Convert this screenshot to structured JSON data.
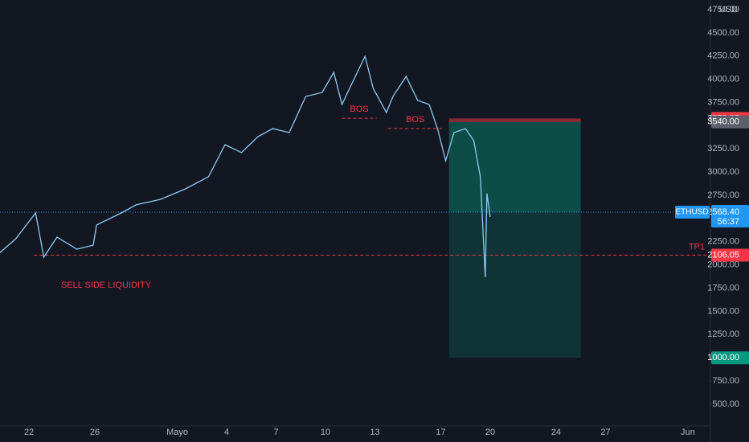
{
  "chart_data": {
    "type": "line",
    "unit": "USD",
    "xlim": [
      -1.76,
      41.37
    ],
    "ylim": [
      266,
      4854
    ],
    "xticks": [
      {
        "value": 0,
        "label": "22"
      },
      {
        "value": 4,
        "label": "26"
      },
      {
        "value": 9,
        "label": "Mayo"
      },
      {
        "value": 12,
        "label": "4"
      },
      {
        "value": 15,
        "label": "7"
      },
      {
        "value": 18,
        "label": "10"
      },
      {
        "value": 21,
        "label": "13"
      },
      {
        "value": 25,
        "label": "17"
      },
      {
        "value": 28,
        "label": "20"
      },
      {
        "value": 32,
        "label": "24"
      },
      {
        "value": 35,
        "label": "27"
      },
      {
        "value": 40,
        "label": "Jun"
      }
    ],
    "yticks": [
      {
        "value": 4750,
        "label": "4750.00"
      },
      {
        "value": 4500,
        "label": "4500.00"
      },
      {
        "value": 4250,
        "label": "4250.00"
      },
      {
        "value": 4000,
        "label": "4000.00"
      },
      {
        "value": 3750,
        "label": "3750.00"
      },
      {
        "value": 3250,
        "label": "3250.00"
      },
      {
        "value": 3000,
        "label": "3000.00"
      },
      {
        "value": 2750,
        "label": "2750.00"
      },
      {
        "value": 2250,
        "label": "2250.00"
      },
      {
        "value": 2000,
        "label": "2000.00"
      },
      {
        "value": 1750,
        "label": "1750.00"
      },
      {
        "value": 1500,
        "label": "1500.00"
      },
      {
        "value": 1250,
        "label": "1250.00"
      },
      {
        "value": 750,
        "label": "750.00"
      },
      {
        "value": 500,
        "label": "500.00"
      }
    ],
    "series": [
      {
        "name": "ETHUSD",
        "color": "#8ec9f2",
        "x": [
          -1.8,
          -0.8,
          0.4,
          0.9,
          1.7,
          2.9,
          3.9,
          4.1,
          5.6,
          6.5,
          8.0,
          9.5,
          10.9,
          11.9,
          12.9,
          13.9,
          14.8,
          15.8,
          16.8,
          17.8,
          18.5,
          19.0,
          19.7,
          20.4,
          20.9,
          21.7,
          22.1,
          22.9,
          23.6,
          24.3,
          24.8,
          25.3,
          25.8,
          26.5,
          27.0,
          27.4,
          27.7,
          27.8,
          28.0
        ],
        "values": [
          2127,
          2283,
          2560,
          2084,
          2300,
          2170,
          2213,
          2430,
          2560,
          2647,
          2707,
          2820,
          2950,
          3296,
          3210,
          3382,
          3469,
          3426,
          3815,
          3858,
          4075,
          3729,
          3988,
          4248,
          3901,
          3642,
          3815,
          4031,
          3772,
          3729,
          3469,
          3123,
          3426,
          3469,
          3340,
          2950,
          1868,
          2770,
          2517
        ]
      }
    ],
    "last_price": {
      "value": 2568.4,
      "label": "2568.40",
      "countdown": "56:37"
    },
    "position": {
      "x_start": 25.5,
      "x_end": 33.5,
      "stop": 3578.25,
      "entry": {
        "value": 3540,
        "label": "3540.00"
      },
      "target": {
        "value": 1000,
        "label": "1000.00"
      }
    },
    "tp1": {
      "text": "TP1",
      "value": 2106.05
    },
    "sell_side_liquidity": {
      "text": "SELL SIDE LIQUIDITY",
      "x_start": 0.3
    },
    "bos": [
      {
        "text": "BOS",
        "value": 3580,
        "x_start": 19.0,
        "x_end": 21.1
      },
      {
        "text": "BOS",
        "value": 3470,
        "x_start": 21.8,
        "x_end": 25.1
      }
    ]
  }
}
